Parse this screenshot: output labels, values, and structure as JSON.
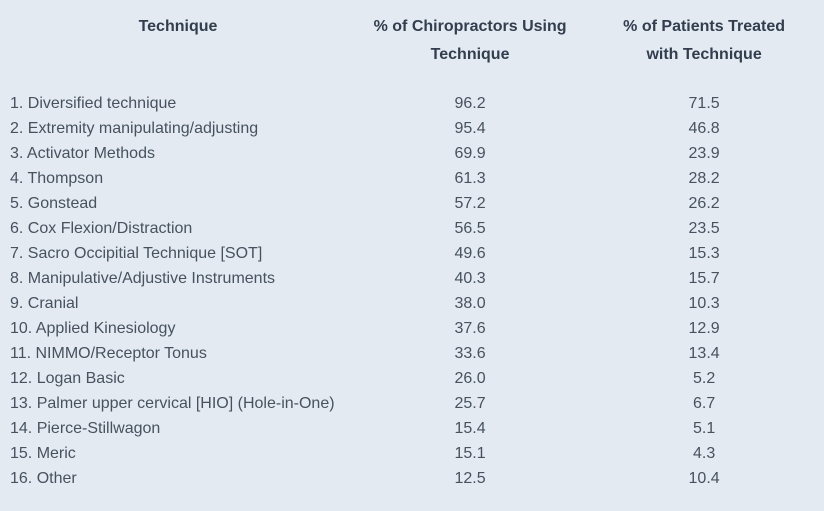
{
  "colors": {
    "background": "#e3eaf2",
    "header_text": "#323d4d",
    "body_text": "#47525e"
  },
  "chart_data": {
    "type": "table",
    "title": "",
    "columns": [
      {
        "id": "technique",
        "label": "Technique",
        "align": "left"
      },
      {
        "id": "chiropractors",
        "label": "% of Chiropractors Using Technique",
        "label_line1": "% of Chiropractors Using",
        "label_line2": "Technique",
        "align": "center"
      },
      {
        "id": "patients",
        "label": "% of Patients Treated with Technique",
        "label_line1": "% of Patients Treated",
        "label_line2": "with Technique",
        "align": "center"
      }
    ],
    "rows": [
      {
        "technique": "1. Diversified technique",
        "chiropractors": "96.2",
        "patients": "71.5"
      },
      {
        "technique": "2. Extremity manipulating/adjusting",
        "chiropractors": "95.4",
        "patients": "46.8"
      },
      {
        "technique": "3. Activator Methods",
        "chiropractors": "69.9",
        "patients": "23.9"
      },
      {
        "technique": "4. Thompson",
        "chiropractors": "61.3",
        "patients": "28.2"
      },
      {
        "technique": "5. Gonstead",
        "chiropractors": "57.2",
        "patients": "26.2"
      },
      {
        "technique": "6. Cox Flexion/Distraction",
        "chiropractors": "56.5",
        "patients": "23.5"
      },
      {
        "technique": "7. Sacro Occipitial Technique [SOT]",
        "chiropractors": "49.6",
        "patients": "15.3"
      },
      {
        "technique": "8. Manipulative/Adjustive Instruments",
        "chiropractors": "40.3",
        "patients": "15.7"
      },
      {
        "technique": "9. Cranial",
        "chiropractors": "38.0",
        "patients": "10.3"
      },
      {
        "technique": "10. Applied Kinesiology",
        "chiropractors": "37.6",
        "patients": "12.9"
      },
      {
        "technique": "11. NIMMO/Receptor Tonus",
        "chiropractors": "33.6",
        "patients": "13.4"
      },
      {
        "technique": "12. Logan Basic",
        "chiropractors": "26.0",
        "patients": "5.2"
      },
      {
        "technique": "13. Palmer upper cervical [HIO] (Hole-in-One)",
        "chiropractors": "25.7",
        "patients": "6.7"
      },
      {
        "technique": "14. Pierce-Stillwagon",
        "chiropractors": "15.4",
        "patients": "5.1"
      },
      {
        "technique": "15. Meric",
        "chiropractors": "15.1",
        "patients": "4.3"
      },
      {
        "technique": "16. Other",
        "chiropractors": "12.5",
        "patients": "10.4"
      }
    ]
  }
}
